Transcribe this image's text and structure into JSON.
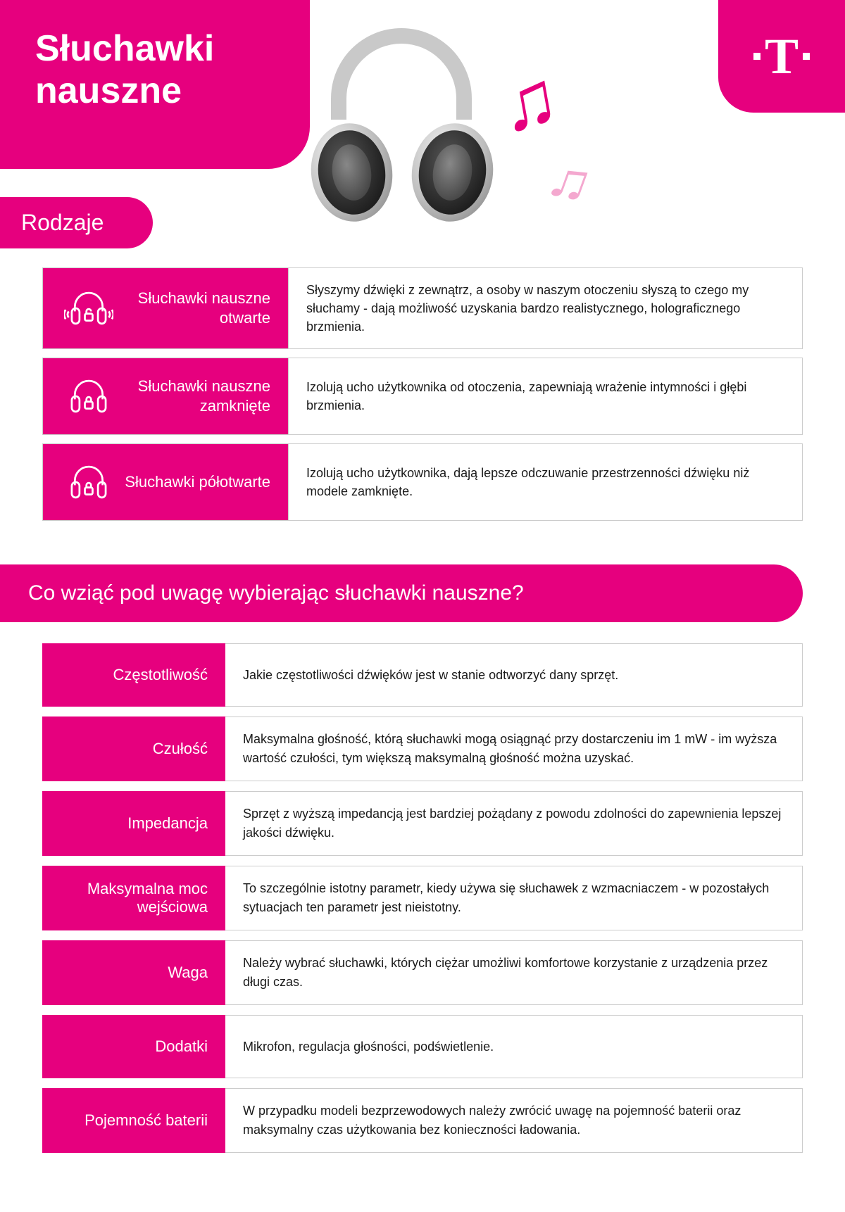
{
  "colors": {
    "brand": "#e6007e",
    "text": "#1a1a1a",
    "border": "#cccccc",
    "background": "#ffffff",
    "note_light": "#f4a8cf"
  },
  "typography": {
    "title_fontsize": 52,
    "section_fontsize": 30,
    "label_fontsize": 22,
    "body_fontsize": 18
  },
  "title": "Słuchawki nauszne",
  "logo_letter": "T",
  "music_note_glyph": "♫",
  "section_types_label": "Rodzaje",
  "types": [
    {
      "icon": "headphone-open-icon",
      "name": "Słuchawki nauszne otwarte",
      "desc": "Słyszymy dźwięki z zewnątrz, a osoby w naszym otoczeniu słyszą to czego my słuchamy - dają możliwość uzyskania bardzo realistycznego, holograficznego brzmienia."
    },
    {
      "icon": "headphone-closed-icon",
      "name": "Słuchawki nauszne zamknięte",
      "desc": "Izolują ucho użytkownika od otoczenia, zapewniają wrażenie intymności i głębi brzmienia."
    },
    {
      "icon": "headphone-semiopen-icon",
      "name": "Słuchawki półotwarte",
      "desc": "Izolują ucho użytkownika, dają lepsze odczuwanie przestrzenności dźwięku niż modele zamknięte."
    }
  ],
  "section_factors_label": "Co wziąć pod uwagę wybierając słuchawki nauszne?",
  "factors": [
    {
      "name": "Częstotliwość",
      "desc": "Jakie częstotliwości dźwięków jest w stanie odtworzyć dany sprzęt."
    },
    {
      "name": "Czułość",
      "desc": "Maksymalna głośność, którą słuchawki mogą osiągnąć przy dostarczeniu im 1 mW - im wyższa wartość czułości, tym większą maksymalną głośność można uzyskać."
    },
    {
      "name": "Impedancja",
      "desc": "Sprzęt z wyższą impedancją jest bardziej pożądany z powodu zdolności do zapewnienia lepszej jakości dźwięku."
    },
    {
      "name": "Maksymalna moc wejściowa",
      "desc": "To szczególnie istotny parametr, kiedy używa się słuchawek z wzmacniaczem - w pozostałych sytuacjach ten parametr jest nieistotny."
    },
    {
      "name": "Waga",
      "desc": "Należy wybrać słuchawki, których ciężar umożliwi komfortowe korzystanie z urządzenia przez długi czas."
    },
    {
      "name": "Dodatki",
      "desc": "Mikrofon, regulacja głośności, podświetlenie."
    },
    {
      "name": "Pojemność baterii",
      "desc": "W przypadku modeli bezprzewodowych należy zwrócić uwagę na pojemność baterii oraz maksymalny czas użytkowania bez konieczności ładowania."
    }
  ]
}
